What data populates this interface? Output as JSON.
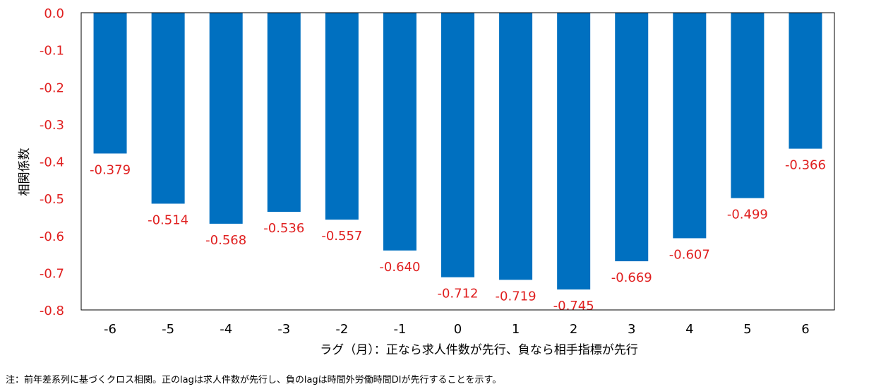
{
  "chart_data": {
    "type": "bar",
    "categories": [
      "-6",
      "-5",
      "-4",
      "-3",
      "-2",
      "-1",
      "0",
      "1",
      "2",
      "3",
      "4",
      "5",
      "6"
    ],
    "values": [
      -0.379,
      -0.514,
      -0.568,
      -0.536,
      -0.557,
      -0.64,
      -0.712,
      -0.719,
      -0.745,
      -0.669,
      -0.607,
      -0.499,
      -0.366
    ],
    "data_labels": [
      "-0.379",
      "-0.514",
      "-0.568",
      "-0.536",
      "-0.557",
      "-0.640",
      "-0.712",
      "-0.719",
      "-0.745",
      "-0.669",
      "-0.607",
      "-0.499",
      "-0.366"
    ],
    "ylim": [
      -0.8,
      0.0
    ],
    "yticks": [
      0.0,
      -0.1,
      -0.2,
      -0.3,
      -0.4,
      -0.5,
      -0.6,
      -0.7,
      -0.8
    ],
    "ytick_labels": [
      "0.0",
      "-0.1",
      "-0.2",
      "-0.3",
      "-0.4",
      "-0.5",
      "-0.6",
      "-0.7",
      "-0.8"
    ],
    "xlabel": "ラグ（月）：正なら求人件数が先行、負なら相手指標が先行",
    "ylabel": "相関係数",
    "grid": false,
    "legend": "none",
    "colors": {
      "bar": "#0070C0",
      "data_label": "#E02020",
      "y_tick": "#E02020",
      "x_tick": "#000000",
      "axis_line": "#000000"
    }
  },
  "note": "注：前年差系列に基づくクロス相関。正のlagは求人件数が先行し、負のlagは時間外労働時間DIが先行することを示す。"
}
